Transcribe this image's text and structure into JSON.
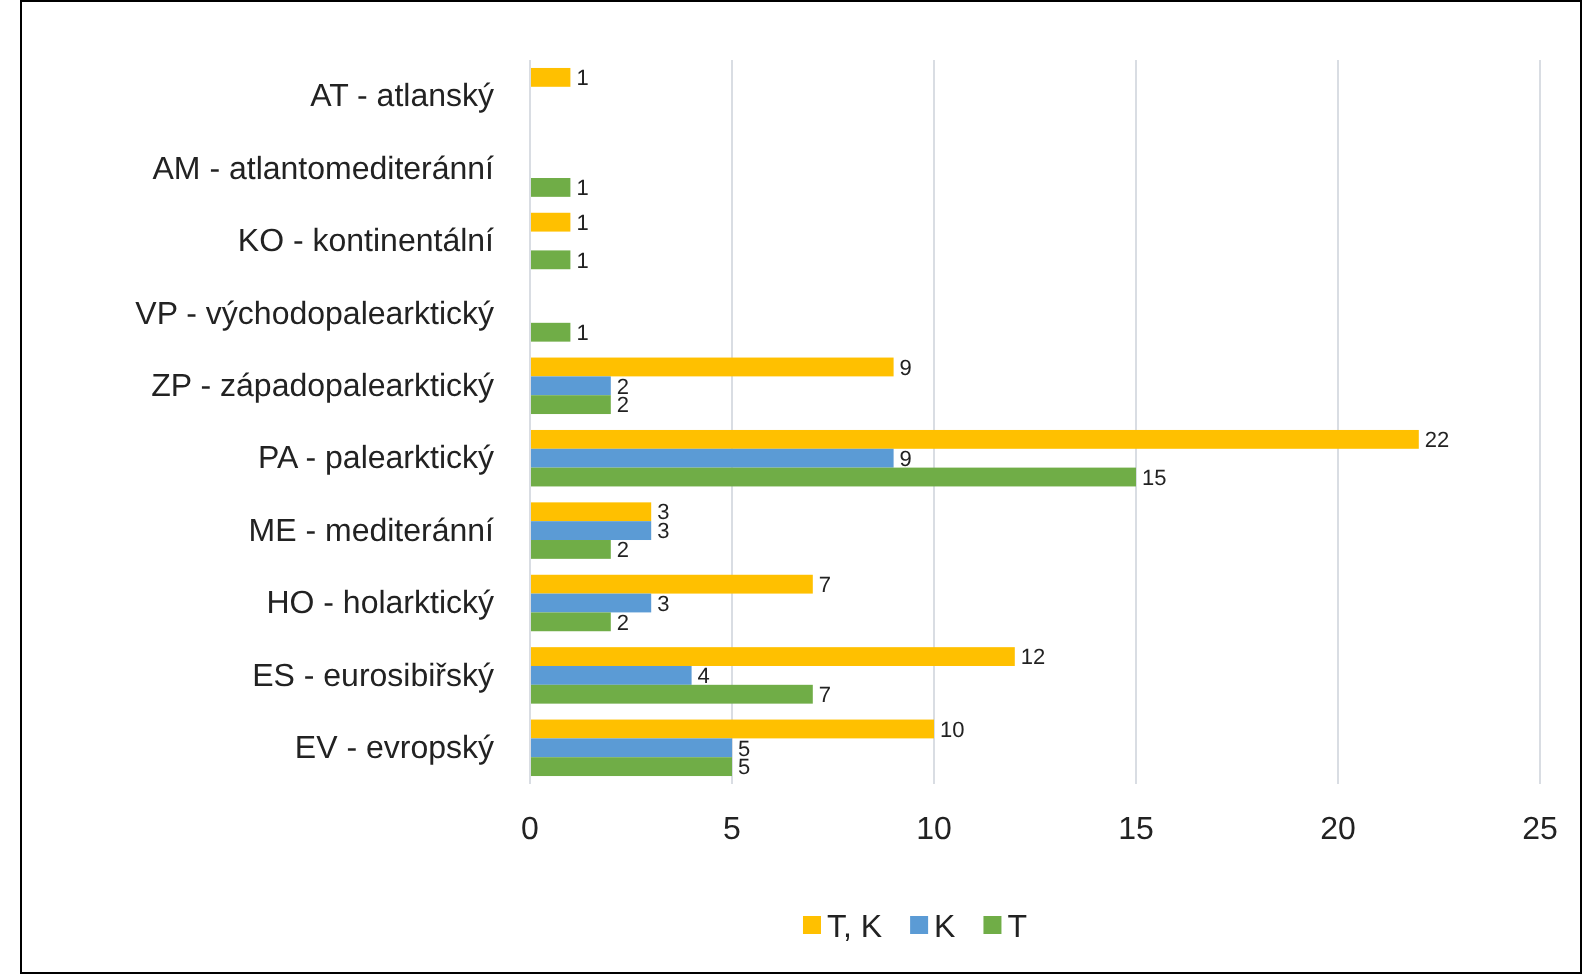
{
  "chart_data": {
    "type": "bar",
    "orientation": "horizontal",
    "categories": [
      "AT - atlanský",
      "AM - atlantomediteránní",
      "KO - kontinentální",
      "VP - východopalearktický",
      "ZP - západopalearktický",
      "PA - palearktický",
      "ME - mediteránní",
      "HO - holarktický",
      "ES - eurosibiřský",
      "EV - evropský"
    ],
    "series": [
      {
        "name": "T, K",
        "color": "#ffc000",
        "values": [
          1,
          null,
          1,
          null,
          9,
          22,
          3,
          7,
          12,
          10
        ]
      },
      {
        "name": "K",
        "color": "#5b9bd5",
        "values": [
          null,
          null,
          null,
          null,
          2,
          9,
          3,
          3,
          4,
          5
        ]
      },
      {
        "name": "T",
        "color": "#70ad47",
        "values": [
          null,
          1,
          1,
          1,
          2,
          15,
          2,
          2,
          7,
          5
        ]
      }
    ],
    "xlim": [
      0,
      25
    ],
    "xticks": [
      0,
      5,
      10,
      15,
      20,
      25
    ],
    "grid": "x",
    "legend": "bottom",
    "data_labels": true
  }
}
